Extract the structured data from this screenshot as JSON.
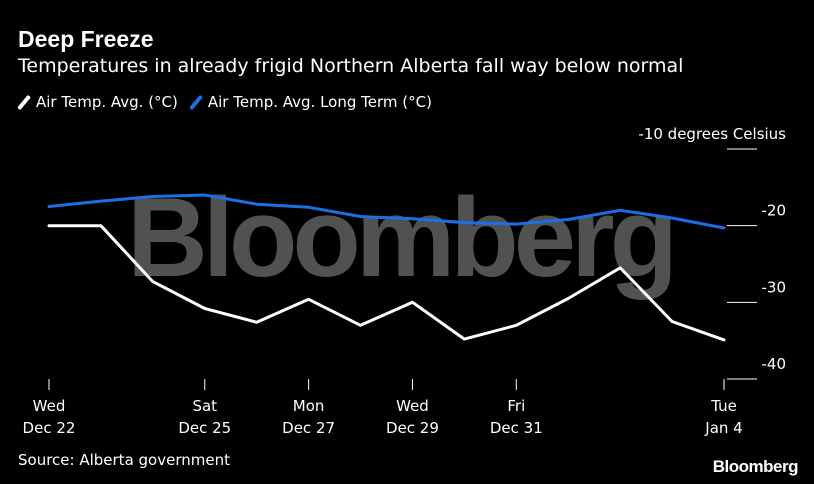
{
  "header": {
    "title": "Deep Freeze",
    "subtitle": "Temperatures in already frigid Northern Alberta fall way below normal"
  },
  "watermark": "Bloomberg",
  "footer": {
    "source": "Source: Alberta government",
    "brand": "Bloomberg"
  },
  "colors": {
    "background": "#000000",
    "series_current": "#ffffff",
    "series_long_term": "#1a6fe8",
    "watermark": "#5a5a5a"
  },
  "chart_data": {
    "type": "line",
    "title": "Deep Freeze",
    "subtitle": "Temperatures in already frigid Northern Alberta fall way below normal",
    "x": [
      "Dec 22",
      "Dec 23",
      "Dec 24",
      "Dec 25",
      "Dec 26",
      "Dec 27",
      "Dec 28",
      "Dec 29",
      "Dec 30",
      "Dec 31",
      "Jan 1",
      "Jan 2",
      "Jan 3",
      "Jan 4"
    ],
    "series": [
      {
        "name": "Air Temp. Avg. (°C)",
        "color": "#ffffff",
        "values": [
          -20.0,
          -20.0,
          -27.3,
          -30.8,
          -32.6,
          -29.6,
          -33.0,
          -30.0,
          -34.8,
          -33.0,
          -29.5,
          -25.5,
          -32.5,
          -34.9
        ]
      },
      {
        "name": "Air Temp. Avg. Long Term (°C)",
        "color": "#1a6fe8",
        "values": [
          -17.5,
          -16.8,
          -16.2,
          -16.0,
          -17.2,
          -17.6,
          -18.8,
          -19.1,
          -19.6,
          -19.8,
          -19.2,
          -18.0,
          -19.0,
          -20.3
        ]
      }
    ],
    "ylim": [
      -40,
      -10
    ],
    "yticks": [
      {
        "value": -10,
        "label": "-10 degrees Celsius"
      },
      {
        "value": -20,
        "label": "-20"
      },
      {
        "value": -30,
        "label": "-30"
      },
      {
        "value": -40,
        "label": "-40"
      }
    ],
    "xticks": [
      {
        "index": 0,
        "line1": "Wed",
        "line2": "Dec 22"
      },
      {
        "index": 3,
        "line1": "Sat",
        "line2": "Dec 25"
      },
      {
        "index": 5,
        "line1": "Mon",
        "line2": "Dec 27"
      },
      {
        "index": 7,
        "line1": "Wed",
        "line2": "Dec 29"
      },
      {
        "index": 9,
        "line1": "Fri",
        "line2": "Dec 31"
      },
      {
        "index": 13,
        "line1": "Tue",
        "line2": "Jan 4"
      }
    ],
    "grid": false,
    "legend": "top-left"
  }
}
